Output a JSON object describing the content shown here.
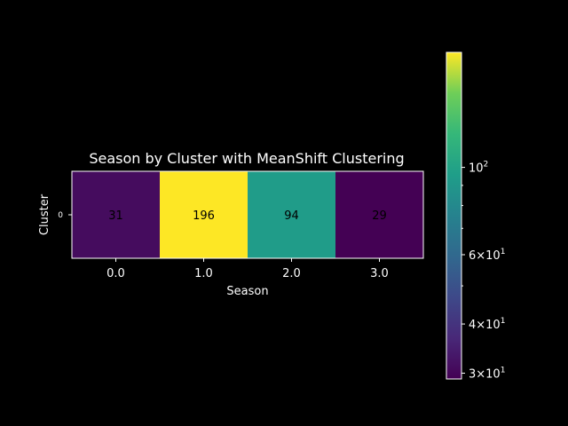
{
  "chart_data": {
    "type": "heatmap",
    "title": "Season by Cluster with MeanShift Clustering",
    "xlabel": "Season",
    "ylabel": "Cluster",
    "x_categories": [
      "0.0",
      "1.0",
      "2.0",
      "3.0"
    ],
    "y_categories": [
      "0"
    ],
    "values": [
      [
        31,
        196,
        94,
        29
      ]
    ],
    "annotations": [
      "31",
      "196",
      "94",
      "29"
    ],
    "colormap": "viridis",
    "colorbar": {
      "scale": "log",
      "range": [
        29,
        196
      ],
      "major_ticks": [
        {
          "value": 30,
          "base": "3×10",
          "exp": "1"
        },
        {
          "value": 40,
          "base": "4×10",
          "exp": "1"
        },
        {
          "value": 60,
          "base": "6×10",
          "exp": "1"
        },
        {
          "value": 100,
          "base": "10",
          "exp": "2"
        }
      ],
      "minor_ticks": [
        50,
        70,
        80,
        90
      ]
    },
    "background": "#000000",
    "text_color": "#ffffff"
  }
}
